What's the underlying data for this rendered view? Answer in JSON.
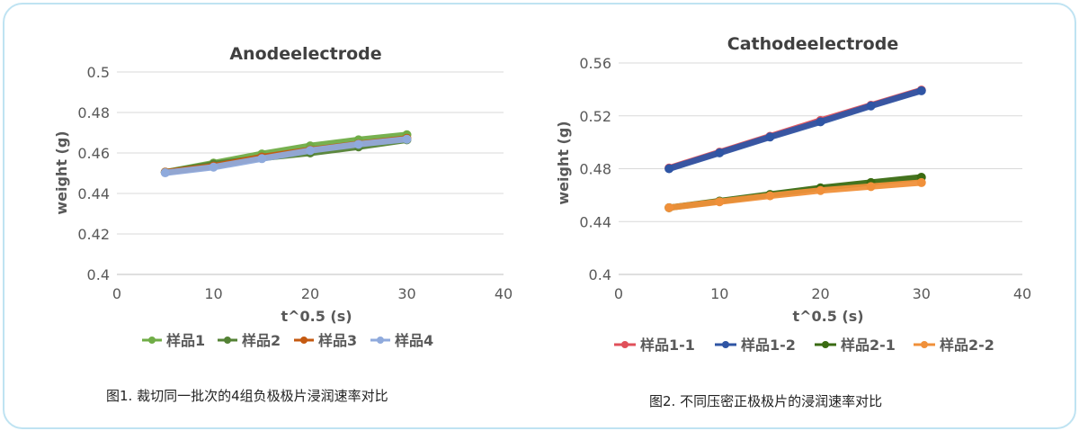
{
  "captions": {
    "fig1": "图1. 裁切同一批次的4组负极极片浸润速率对比",
    "fig2": "图2. 不同压密正极极片的浸润速率对比"
  },
  "chart_data": [
    {
      "type": "line",
      "title": "Anodeelectrode",
      "xlabel": "t^0.5 (s)",
      "ylabel": "weight (g)",
      "xlim": [
        0,
        40
      ],
      "ylim": [
        0.4,
        0.5
      ],
      "x_ticks": [
        0,
        10,
        20,
        30,
        40
      ],
      "y_ticks": [
        0.4,
        0.42,
        0.44,
        0.46,
        0.48,
        0.5
      ],
      "x_tick_labels": [
        "0",
        "10",
        "20",
        "30",
        "40"
      ],
      "y_tick_labels": [
        "0.4",
        "0.42",
        "0.44",
        "0.46",
        "0.48",
        "0.5"
      ],
      "grid": "horizontal",
      "legend_position": "bottom",
      "series": [
        {
          "name": "样品1",
          "color": "#70ad47",
          "x": [
            5,
            10,
            15,
            20,
            25,
            30
          ],
          "y": [
            0.4505,
            0.455,
            0.4595,
            0.4635,
            0.4665,
            0.469
          ]
        },
        {
          "name": "样品2",
          "color": "#548235",
          "x": [
            5,
            10,
            15,
            20,
            25,
            30
          ],
          "y": [
            0.4505,
            0.4545,
            0.4575,
            0.46,
            0.463,
            0.4665
          ]
        },
        {
          "name": "样品3",
          "color": "#c55a11",
          "x": [
            5,
            10,
            15,
            20,
            25,
            30
          ],
          "y": [
            0.4505,
            0.4535,
            0.458,
            0.4615,
            0.4645,
            0.4672
          ]
        },
        {
          "name": "样品4",
          "color": "#8faadc",
          "x": [
            5,
            10,
            15,
            20,
            25,
            30
          ],
          "y": [
            0.4502,
            0.453,
            0.4572,
            0.4612,
            0.4643,
            0.4668
          ]
        }
      ]
    },
    {
      "type": "line",
      "title": "Cathodeelectrode",
      "xlabel": "t^0.5 (s)",
      "ylabel": "weight (g)",
      "xlim": [
        0,
        40
      ],
      "ylim": [
        0.4,
        0.56
      ],
      "x_ticks": [
        0,
        10,
        20,
        30,
        40
      ],
      "y_ticks": [
        0.4,
        0.44,
        0.48,
        0.52,
        0.56
      ],
      "x_tick_labels": [
        "0",
        "10",
        "20",
        "30",
        "40"
      ],
      "y_tick_labels": [
        "0.4",
        "0.44",
        "0.48",
        "0.52",
        "0.56"
      ],
      "grid": "horizontal",
      "legend_position": "bottom",
      "series": [
        {
          "name": "样品1-1",
          "color": "#e0505a",
          "x": [
            5,
            10,
            15,
            20,
            25,
            30
          ],
          "y": [
            0.4805,
            0.4925,
            0.5045,
            0.5165,
            0.528,
            0.5395
          ]
        },
        {
          "name": "样品1-2",
          "color": "#2f55a4",
          "x": [
            5,
            10,
            15,
            20,
            25,
            30
          ],
          "y": [
            0.48,
            0.492,
            0.504,
            0.5155,
            0.5275,
            0.539
          ]
        },
        {
          "name": "样品2-1",
          "color": "#3a6b12",
          "x": [
            5,
            10,
            15,
            20,
            25,
            30
          ],
          "y": [
            0.4505,
            0.4555,
            0.4605,
            0.4655,
            0.4695,
            0.4735
          ]
        },
        {
          "name": "样品2-2",
          "color": "#f0903a",
          "x": [
            5,
            10,
            15,
            20,
            25,
            30
          ],
          "y": [
            0.4505,
            0.455,
            0.4595,
            0.4635,
            0.4665,
            0.4695
          ]
        }
      ]
    }
  ]
}
